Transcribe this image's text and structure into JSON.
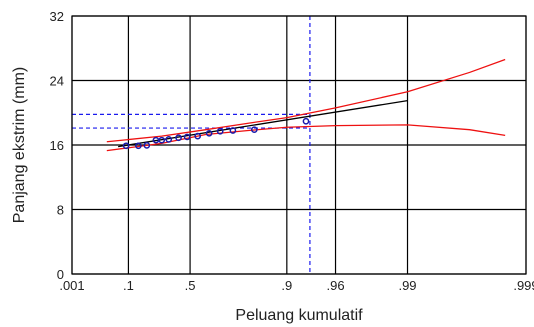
{
  "chart_data": {
    "type": "scatter",
    "title": "",
    "xlabel": "Peluang kumulatif",
    "ylabel": "Panjang ekstrim (mm)",
    "x_scale": "gumbel-probability",
    "x_ticks": [
      {
        "p": 0.001,
        "label": ".001"
      },
      {
        "p": 0.1,
        "label": ".1"
      },
      {
        "p": 0.5,
        "label": ".5"
      },
      {
        "p": 0.9,
        "label": ".9"
      },
      {
        "p": 0.96,
        "label": ".96"
      },
      {
        "p": 0.99,
        "label": ".99"
      },
      {
        "p": 0.999,
        "label": ".999"
      }
    ],
    "xlim": [
      0.001,
      0.999
    ],
    "ylim": [
      0,
      32
    ],
    "y_ticks": [
      0,
      8,
      16,
      24,
      32
    ],
    "grid": true,
    "series": [
      {
        "role": "observed-points",
        "color": "#1a1aaa",
        "points": [
          {
            "p": 0.09,
            "y": 15.9
          },
          {
            "p": 0.15,
            "y": 15.9
          },
          {
            "p": 0.2,
            "y": 15.95
          },
          {
            "p": 0.26,
            "y": 16.6
          },
          {
            "p": 0.3,
            "y": 16.6
          },
          {
            "p": 0.35,
            "y": 16.7
          },
          {
            "p": 0.42,
            "y": 16.9
          },
          {
            "p": 0.48,
            "y": 17.0
          },
          {
            "p": 0.55,
            "y": 17.1
          },
          {
            "p": 0.62,
            "y": 17.45
          },
          {
            "p": 0.68,
            "y": 17.7
          },
          {
            "p": 0.74,
            "y": 17.8
          },
          {
            "p": 0.82,
            "y": 17.9
          },
          {
            "p": 0.93,
            "y": 18.95
          }
        ]
      },
      {
        "role": "fitted-line",
        "color": "#000000",
        "points": [
          {
            "p": 0.06,
            "y": 15.8
          },
          {
            "p": 0.99,
            "y": 21.5
          }
        ]
      },
      {
        "role": "upper-confidence-band",
        "color": "#ee1111",
        "points": [
          {
            "p": 0.03,
            "y": 16.4
          },
          {
            "p": 0.3,
            "y": 17.1
          },
          {
            "p": 0.6,
            "y": 17.9
          },
          {
            "p": 0.8,
            "y": 18.7
          },
          {
            "p": 0.9,
            "y": 19.4
          },
          {
            "p": 0.96,
            "y": 20.6
          },
          {
            "p": 0.99,
            "y": 22.6
          },
          {
            "p": 0.997,
            "y": 25.0
          },
          {
            "p": 0.9985,
            "y": 26.6
          }
        ]
      },
      {
        "role": "lower-confidence-band",
        "color": "#ee1111",
        "points": [
          {
            "p": 0.03,
            "y": 15.3
          },
          {
            "p": 0.3,
            "y": 16.2
          },
          {
            "p": 0.6,
            "y": 17.3
          },
          {
            "p": 0.8,
            "y": 17.8
          },
          {
            "p": 0.9,
            "y": 18.2
          },
          {
            "p": 0.96,
            "y": 18.4
          },
          {
            "p": 0.99,
            "y": 18.5
          },
          {
            "p": 0.997,
            "y": 17.9
          },
          {
            "p": 0.9985,
            "y": 17.2
          }
        ]
      }
    ],
    "reference_lines": {
      "color": "#1a1aee",
      "vertical_p": 0.935,
      "horizontal_y": [
        19.8,
        18.1
      ]
    }
  }
}
